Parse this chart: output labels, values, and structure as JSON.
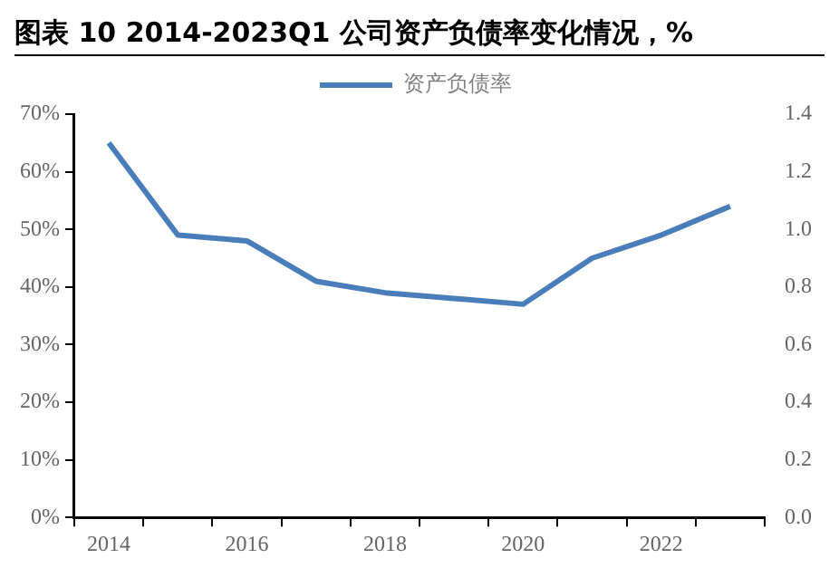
{
  "chart_data": {
    "type": "line",
    "title": "图表 10 2014-2023Q1 公司资产负债率变化情况，%",
    "categories": [
      "2014",
      null,
      "2016",
      null,
      "2018",
      null,
      "2020",
      null,
      "2022",
      null
    ],
    "series": [
      {
        "name": "资产负债率",
        "color": "#4a7ebb",
        "values": [
          65,
          49,
          48,
          41,
          39,
          38,
          37,
          45,
          49,
          54
        ]
      }
    ],
    "ylim": [
      0,
      70
    ],
    "yticks": [
      {
        "value": 0,
        "label": "0%"
      },
      {
        "value": 10,
        "label": "10%"
      },
      {
        "value": 20,
        "label": "20%"
      },
      {
        "value": 30,
        "label": "30%"
      },
      {
        "value": 40,
        "label": "40%"
      },
      {
        "value": 50,
        "label": "50%"
      },
      {
        "value": 60,
        "label": "60%"
      },
      {
        "value": 70,
        "label": "70%"
      }
    ],
    "y2lim": [
      0,
      1.4
    ],
    "y2ticks": [
      {
        "value": 0,
        "label": "0.0"
      },
      {
        "value": 0.2,
        "label": "0.2"
      },
      {
        "value": 0.4,
        "label": "0.4"
      },
      {
        "value": 0.6,
        "label": "0.6"
      },
      {
        "value": 0.8,
        "label": "0.8"
      },
      {
        "value": 1,
        "label": "1.0"
      },
      {
        "value": 1.2,
        "label": "1.2"
      },
      {
        "value": 1.4,
        "label": "1.4"
      }
    ],
    "legend": "top",
    "grid": false,
    "marker": "none",
    "line_style": "solid"
  }
}
